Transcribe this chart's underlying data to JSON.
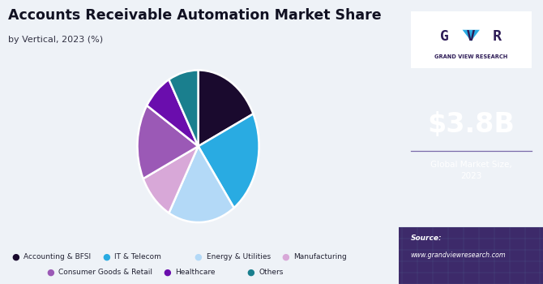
{
  "title": "Accounts Receivable Automation Market Share",
  "subtitle": "by Vertical, 2023 (%)",
  "segments": [
    {
      "label": "Accounting & BFSI",
      "value": 18,
      "color": "#1a0a2e"
    },
    {
      "label": "IT & Telecom",
      "value": 22,
      "color": "#29abe2"
    },
    {
      "label": "Energy & Utilities",
      "value": 18,
      "color": "#b3d9f7"
    },
    {
      "label": "Manufacturing",
      "value": 10,
      "color": "#d8a8d8"
    },
    {
      "label": "Consumer Goods & Retail",
      "value": 16,
      "color": "#9b59b6"
    },
    {
      "label": "Healthcare",
      "value": 8,
      "color": "#6a0dad"
    },
    {
      "label": "Others",
      "value": 8,
      "color": "#1a7f8e"
    }
  ],
  "startangle": 90,
  "sidebar_bg": "#2d1b56",
  "main_bg": "#eef2f7",
  "market_size": "$3.8B",
  "market_label": "Global Market Size,\n2023",
  "source_label": "Source:",
  "source_url": "www.grandviewresearch.com",
  "legend_row1": [
    "Accounting & BFSI",
    "IT & Telecom",
    "Energy & Utilities",
    "Manufacturing"
  ],
  "legend_row2": [
    "Consumer Goods & Retail",
    "Healthcare",
    "Others"
  ]
}
